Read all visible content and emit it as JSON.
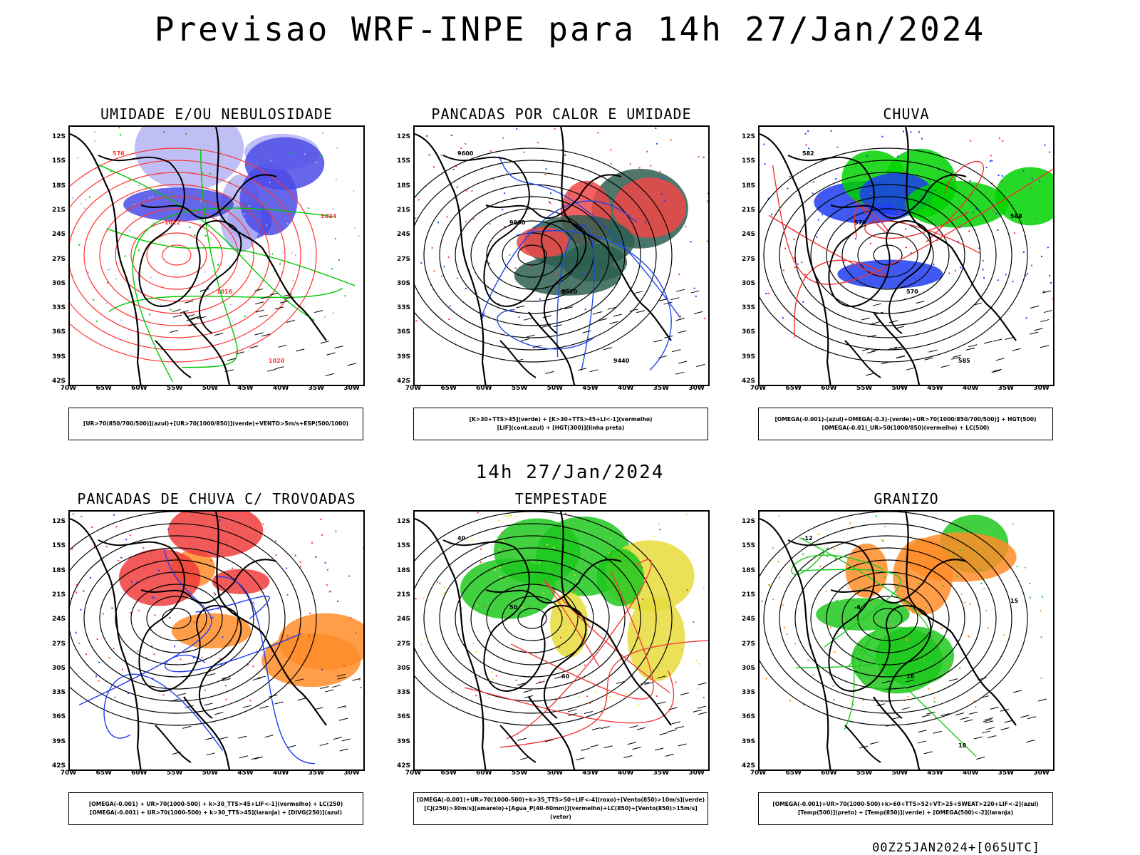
{
  "title": "Previsao WRF-INPE  para 14h 27/Jan/2024",
  "mid_label": "14h 27/Jan/2024",
  "footer": "00Z25JAN2024+[065UTC]",
  "lat_ticks": [
    "12S",
    "15S",
    "18S",
    "21S",
    "24S",
    "27S",
    "30S",
    "33S",
    "36S",
    "39S",
    "42S"
  ],
  "lon_ticks": [
    "70W",
    "65W",
    "60W",
    "55W",
    "50W",
    "45W",
    "40W",
    "35W",
    "30W"
  ],
  "panels": [
    {
      "title": "UMIDADE E/OU NEBULOSIDADE",
      "legend": [
        "[UR>70(850/700/500)](azul)+[UR>70(1000/850)](verde)+VENTO>5m/s+ESP(500/1000)"
      ],
      "contours": [
        "576",
        "1012",
        "1016",
        "1020",
        "1024"
      ],
      "colors": {
        "fill1": "#b4b4f5",
        "fill2": "#4b4be6",
        "line1": "#00c800",
        "line2": "#ff3030"
      }
    },
    {
      "title": "PANCADAS POR CALOR E UMIDADE",
      "legend": [
        "[K>30+TTS>45](verde) + [K>30+TTS>45+LI<-1](vermelho)",
        "[LIF](cont.azul) + [HGT(300)](linha preta)"
      ],
      "contours": [
        "9600",
        "9800",
        "9520",
        "9440"
      ],
      "colors": {
        "fill1": "#f04646",
        "fill2": "#2d5f50",
        "line1": "#1e46e6",
        "line2": "#000000"
      }
    },
    {
      "title": "CHUVA",
      "legend": [
        "[OMEGA(-0.001)-(azul)+OMEGA(-0.3)-(verde)+UR>70(1000/850/700/500)] + HGT(500)",
        "[OMEGA(-0.01)_UR>50(1000/850)(vermelho) + LC(500)"
      ],
      "contours": [
        "582",
        "576",
        "570",
        "585",
        "588"
      ],
      "colors": {
        "fill1": "#1e3cf0",
        "fill2": "#00d200",
        "line1": "#f03232",
        "line2": "#000000"
      }
    },
    {
      "title": "PANCADAS DE CHUVA C/ TROVOADAS",
      "legend": [
        "[OMEGA(-0.001) + UR>70(1000-500) + k>30_TTS>45+LIF<-1](vermelho) + LC(250)",
        "[OMEGA(-0.001) + UR>70(1000-500) + k>30_TTS>45](laranja) + [DIVG(250)](azul)"
      ],
      "contours": [],
      "colors": {
        "fill1": "#f03c3c",
        "fill2": "#ff8c28",
        "line1": "#1e3cf0",
        "line2": "#000000"
      }
    },
    {
      "title": "TEMPESTADE",
      "legend": [
        "[OMEGA(-0.001)+UR>70(1000-500)+k>35_TTS>50+LIF<-4](roxo)+[Vento(850)>10m/s](verde)",
        "[CJ(250)>30m/s](amarelo)+[Agua_P(40-60mm)](vermelho)+LC(850)+[Vento(850)>15m/s](vetor)"
      ],
      "contours": [
        "40",
        "50",
        "60"
      ],
      "colors": {
        "fill1": "#e6dc3c",
        "fill2": "#1ec81e",
        "line1": "#f03c3c",
        "line2": "#000000"
      }
    },
    {
      "title": "GRANIZO",
      "legend": [
        "[OMEGA(-0.001)+UR>70(1000-500)+k>60+TTS>52+VT>25+SWEAT>220+LIF<-2](azul)",
        "[Temp(500)](preto) + [Temp(850)](verde) + [OMEGA(500)<-2](laranja)"
      ],
      "contours": [
        "-12",
        "-6",
        "16",
        "18",
        "15"
      ],
      "colors": {
        "fill1": "#ff8c28",
        "fill2": "#1ec81e",
        "line1": "#1ec81e",
        "line2": "#000000"
      }
    }
  ]
}
